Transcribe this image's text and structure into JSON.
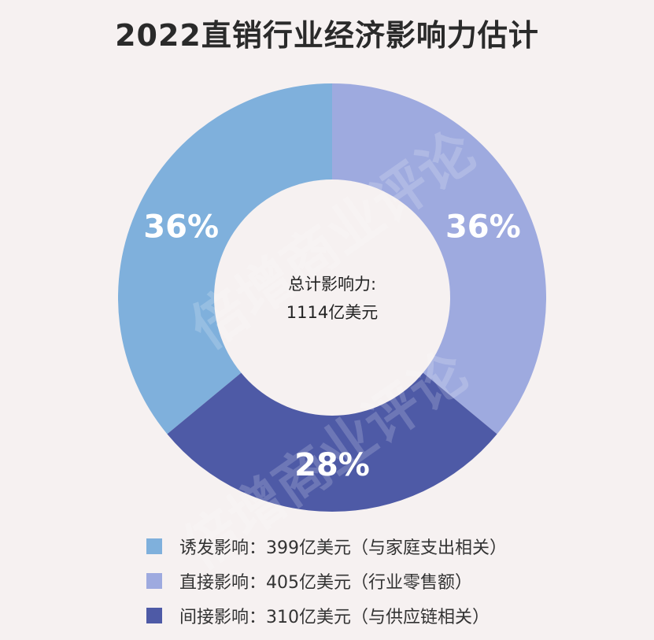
{
  "chart_data": {
    "type": "pie",
    "variant": "donut",
    "title": "2022直销行业经济影响力估计",
    "center_label_line1": "总计影响力:",
    "center_label_line2": "1114亿美元",
    "slices": [
      {
        "percent_label": "36%",
        "percent": 36,
        "value": 399,
        "color": "#7fb0dc",
        "legend": "诱发影响：399亿美元（与家庭支出相关）"
      },
      {
        "percent_label": "36%",
        "percent": 36,
        "value": 405,
        "color": "#9eaadf",
        "legend": "直接影响：405亿美元（行业零售额）"
      },
      {
        "percent_label": "28%",
        "percent": 28,
        "value": 310,
        "color": "#4e5aa6",
        "legend": "间接影响：310亿美元（与供应链相关）"
      }
    ],
    "legend_position": "bottom"
  },
  "watermark": "倍增商业评论"
}
